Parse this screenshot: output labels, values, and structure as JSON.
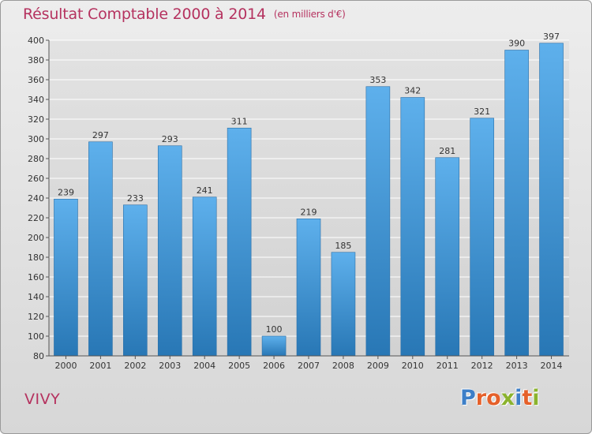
{
  "page": {
    "title": "Résultat Comptable 2000 à 2014",
    "subtitle": "(en milliers d'€)",
    "town": "VIVY",
    "logo_text": "Proxiti",
    "logo_colors": [
      "#3d7fc8",
      "#e5602a",
      "#e5602a",
      "#8bb32e",
      "#3d7fc8",
      "#e5602a",
      "#8bb32e"
    ]
  },
  "colors": {
    "bar_top": "#5eb0ec",
    "bar_bottom": "#2877b5",
    "grid": "#ffffff",
    "axis_text": "#333333",
    "accent": "#b5325f"
  },
  "chart_data": {
    "type": "bar",
    "title": "Résultat Comptable 2000 à 2014",
    "xlabel": "",
    "ylabel": "",
    "categories": [
      "2000",
      "2001",
      "2002",
      "2003",
      "2004",
      "2005",
      "2006",
      "2007",
      "2008",
      "2009",
      "2010",
      "2011",
      "2012",
      "2013",
      "2014"
    ],
    "values": [
      239,
      297,
      233,
      293,
      241,
      311,
      100,
      219,
      185,
      353,
      342,
      281,
      321,
      390,
      397
    ],
    "ylim": [
      80,
      400
    ],
    "yticks": [
      80,
      100,
      120,
      140,
      160,
      180,
      200,
      220,
      240,
      260,
      280,
      300,
      320,
      340,
      360,
      380,
      400
    ],
    "grid": true,
    "legend": "none"
  }
}
